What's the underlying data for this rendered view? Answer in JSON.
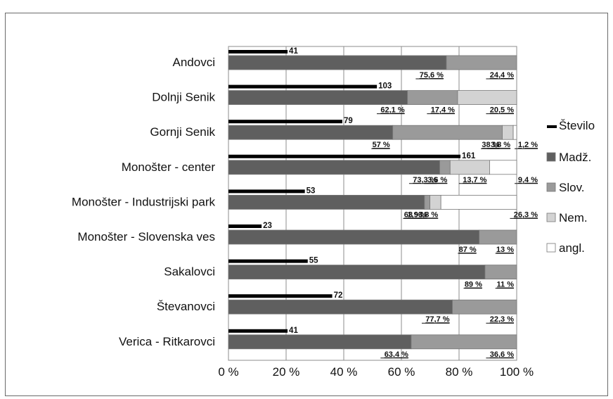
{
  "chart_data": {
    "type": "bar",
    "orientation": "horizontal",
    "stacked_percent": true,
    "categories": [
      "Andovci",
      "Dolnji Senik",
      "Gornji Senik",
      "Monošter - center",
      "Monošter - Industrijski park",
      "Monošter - Slovenska ves",
      "Sakalovci",
      "Števanovci",
      "Verica - Ritkarovci"
    ],
    "count_series": {
      "name": "Število",
      "values": [
        41,
        103,
        79,
        161,
        53,
        23,
        55,
        72,
        41
      ],
      "max": 200
    },
    "series": [
      {
        "name": "Madž.",
        "color": "#5f5f5f",
        "values": [
          75.6,
          62.1,
          57,
          73.3,
          68,
          87,
          89,
          77.7,
          63.4
        ],
        "labels": [
          "75,6 %",
          "62,1 %",
          "57 %",
          "73,3 %",
          "68 %",
          "87 %",
          "89 %",
          "77,7 %",
          "63,4 %"
        ]
      },
      {
        "name": "Slov.",
        "color": "#9a9a9a",
        "values": [
          24.4,
          17.4,
          38,
          3.6,
          1.9,
          13,
          11,
          22.3,
          36.6
        ],
        "labels": [
          "24,4 %",
          "17,4 %",
          "38 %",
          "3,6 %",
          "1,9 %",
          "13 %",
          "11 %",
          "22,3 %",
          "36,6 %"
        ]
      },
      {
        "name": "Nem.",
        "color": "#d3d3d3",
        "values": [
          0,
          20.5,
          3.8,
          13.7,
          3.8,
          0,
          0,
          0,
          0
        ],
        "labels": [
          "",
          "20,5 %",
          "3,8 %",
          "13,7 %",
          "3,8 %",
          "",
          "",
          "",
          ""
        ]
      },
      {
        "name": "angl.",
        "color": "#ffffff",
        "values": [
          0,
          0,
          1.2,
          9.4,
          26.3,
          0,
          0,
          0,
          0
        ],
        "labels": [
          "",
          "",
          "1,2 %",
          "9,4 %",
          "26,3 %",
          "",
          "",
          "",
          ""
        ]
      }
    ],
    "x_ticks": [
      "0 %",
      "20 %",
      "40 %",
      "60 %",
      "80 %",
      "100 %"
    ],
    "xlim": [
      0,
      100
    ],
    "grid": true,
    "legend_position": "right"
  }
}
